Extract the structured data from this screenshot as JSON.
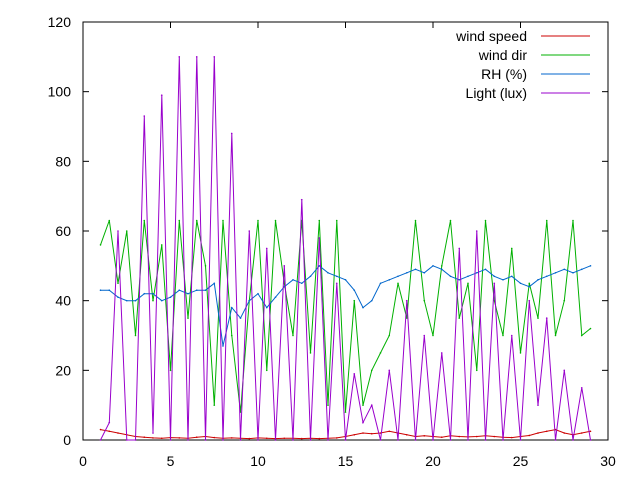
{
  "chart_data": {
    "type": "line",
    "title": "",
    "xlabel": "",
    "ylabel": "",
    "xlim": [
      0,
      30
    ],
    "ylim": [
      0,
      120
    ],
    "x_ticks": [
      "0",
      "5",
      "10",
      "15",
      "20",
      "25",
      "30"
    ],
    "y_ticks": [
      "0",
      "20",
      "40",
      "60",
      "80",
      "100",
      "120"
    ],
    "grid": false,
    "legend_position": "top-right",
    "series": [
      {
        "name": "wind speed",
        "color": "#cc0000",
        "x": [
          1.0,
          1.5,
          2.0,
          2.5,
          3.0,
          3.5,
          4.0,
          4.5,
          5.0,
          5.5,
          6.0,
          6.5,
          7.0,
          7.5,
          8.0,
          8.5,
          9.0,
          9.5,
          10.0,
          10.5,
          11.0,
          11.5,
          12.0,
          12.5,
          13.0,
          13.5,
          14.0,
          14.5,
          15.0,
          15.5,
          16.0,
          16.5,
          17.0,
          17.5,
          18.0,
          18.5,
          19.0,
          19.5,
          20.0,
          20.5,
          21.0,
          21.5,
          22.0,
          22.5,
          23.0,
          23.5,
          24.0,
          24.5,
          25.0,
          25.5,
          26.0,
          26.5,
          27.0,
          27.5,
          28.0,
          28.5,
          29.0
        ],
        "values": [
          3,
          2.5,
          2,
          1.5,
          1,
          0.8,
          0.6,
          0.5,
          0.7,
          0.6,
          0.5,
          0.8,
          1,
          0.7,
          0.5,
          0.6,
          0.5,
          0.4,
          0.6,
          0.5,
          0.4,
          0.5,
          0.5,
          0.4,
          0.5,
          0.4,
          0.5,
          0.6,
          1,
          1.5,
          2,
          1.8,
          2,
          2.5,
          2,
          1.5,
          1,
          1.2,
          1,
          0.8,
          1.2,
          1,
          0.9,
          1,
          1.2,
          1,
          0.8,
          0.7,
          1,
          1.3,
          2,
          2.5,
          3,
          2,
          1.5,
          2,
          2.5
        ]
      },
      {
        "name": "wind dir",
        "color": "#00b000",
        "x": [
          1.0,
          1.5,
          2.0,
          2.5,
          3.0,
          3.5,
          4.0,
          4.5,
          5.0,
          5.5,
          6.0,
          6.5,
          7.0,
          7.5,
          8.0,
          8.5,
          9.0,
          9.5,
          10.0,
          10.5,
          11.0,
          11.5,
          12.0,
          12.5,
          13.0,
          13.5,
          14.0,
          14.5,
          15.0,
          15.5,
          16.0,
          16.5,
          17.0,
          17.5,
          18.0,
          18.5,
          19.0,
          19.5,
          20.0,
          20.5,
          21.0,
          21.5,
          22.0,
          22.5,
          23.0,
          23.5,
          24.0,
          24.5,
          25.0,
          25.5,
          26.0,
          26.5,
          27.0,
          27.5,
          28.0,
          28.5,
          29.0
        ],
        "values": [
          56,
          63,
          45,
          60,
          30,
          63,
          40,
          56,
          20,
          63,
          35,
          63,
          50,
          10,
          63,
          30,
          8,
          40,
          63,
          20,
          63,
          45,
          30,
          63,
          25,
          63,
          10,
          63,
          8,
          40,
          10,
          20,
          25,
          30,
          45,
          35,
          63,
          40,
          30,
          50,
          63,
          35,
          45,
          20,
          63,
          40,
          30,
          55,
          25,
          45,
          35,
          63,
          30,
          40,
          63,
          30,
          32
        ]
      },
      {
        "name": "RH (%)",
        "color": "#0066cc",
        "x": [
          1.0,
          1.5,
          2.0,
          2.5,
          3.0,
          3.5,
          4.0,
          4.5,
          5.0,
          5.5,
          6.0,
          6.5,
          7.0,
          7.5,
          8.0,
          8.5,
          9.0,
          9.5,
          10.0,
          10.5,
          11.0,
          11.5,
          12.0,
          12.5,
          13.0,
          13.5,
          14.0,
          14.5,
          15.0,
          15.5,
          16.0,
          16.5,
          17.0,
          17.5,
          18.0,
          18.5,
          19.0,
          19.5,
          20.0,
          20.5,
          21.0,
          21.5,
          22.0,
          22.5,
          23.0,
          23.5,
          24.0,
          24.5,
          25.0,
          25.5,
          26.0,
          26.5,
          27.0,
          27.5,
          28.0,
          28.5,
          29.0
        ],
        "values": [
          43,
          43,
          41,
          40,
          40,
          42,
          42,
          40,
          41,
          43,
          42,
          43,
          43,
          45,
          27,
          38,
          35,
          40,
          42,
          38,
          41,
          44,
          46,
          45,
          47,
          50,
          48,
          47,
          46,
          43,
          38,
          40,
          45,
          46,
          47,
          48,
          49,
          48,
          50,
          49,
          47,
          46,
          47,
          48,
          49,
          47,
          46,
          47,
          45,
          44,
          46,
          47,
          48,
          49,
          48,
          49,
          50
        ]
      },
      {
        "name": "Light (lux)",
        "color": "#9900cc",
        "x": [
          1.0,
          1.5,
          2.0,
          2.5,
          3.0,
          3.5,
          4.0,
          4.5,
          5.0,
          5.5,
          6.0,
          6.5,
          7.0,
          7.5,
          8.0,
          8.5,
          9.0,
          9.5,
          10.0,
          10.5,
          11.0,
          11.5,
          12.0,
          12.5,
          13.0,
          13.5,
          14.0,
          14.5,
          15.0,
          15.5,
          16.0,
          16.5,
          17.0,
          17.5,
          18.0,
          18.5,
          19.0,
          19.5,
          20.0,
          20.5,
          21.0,
          21.5,
          22.0,
          22.5,
          23.0,
          23.5,
          24.0,
          24.5,
          25.0,
          25.5,
          26.0,
          26.5,
          27.0,
          27.5,
          28.0,
          28.5,
          29.0
        ],
        "values": [
          0,
          5,
          60,
          0,
          0,
          93,
          2,
          99,
          0,
          110,
          0,
          110,
          0,
          110,
          0,
          88,
          0,
          60,
          0,
          55,
          0,
          50,
          0,
          69,
          0,
          58,
          0,
          45,
          0,
          19,
          5,
          10,
          0,
          20,
          0,
          40,
          0,
          30,
          0,
          25,
          0,
          55,
          0,
          60,
          0,
          45,
          0,
          30,
          0,
          40,
          10,
          35,
          0,
          20,
          0,
          15,
          0
        ]
      }
    ]
  }
}
